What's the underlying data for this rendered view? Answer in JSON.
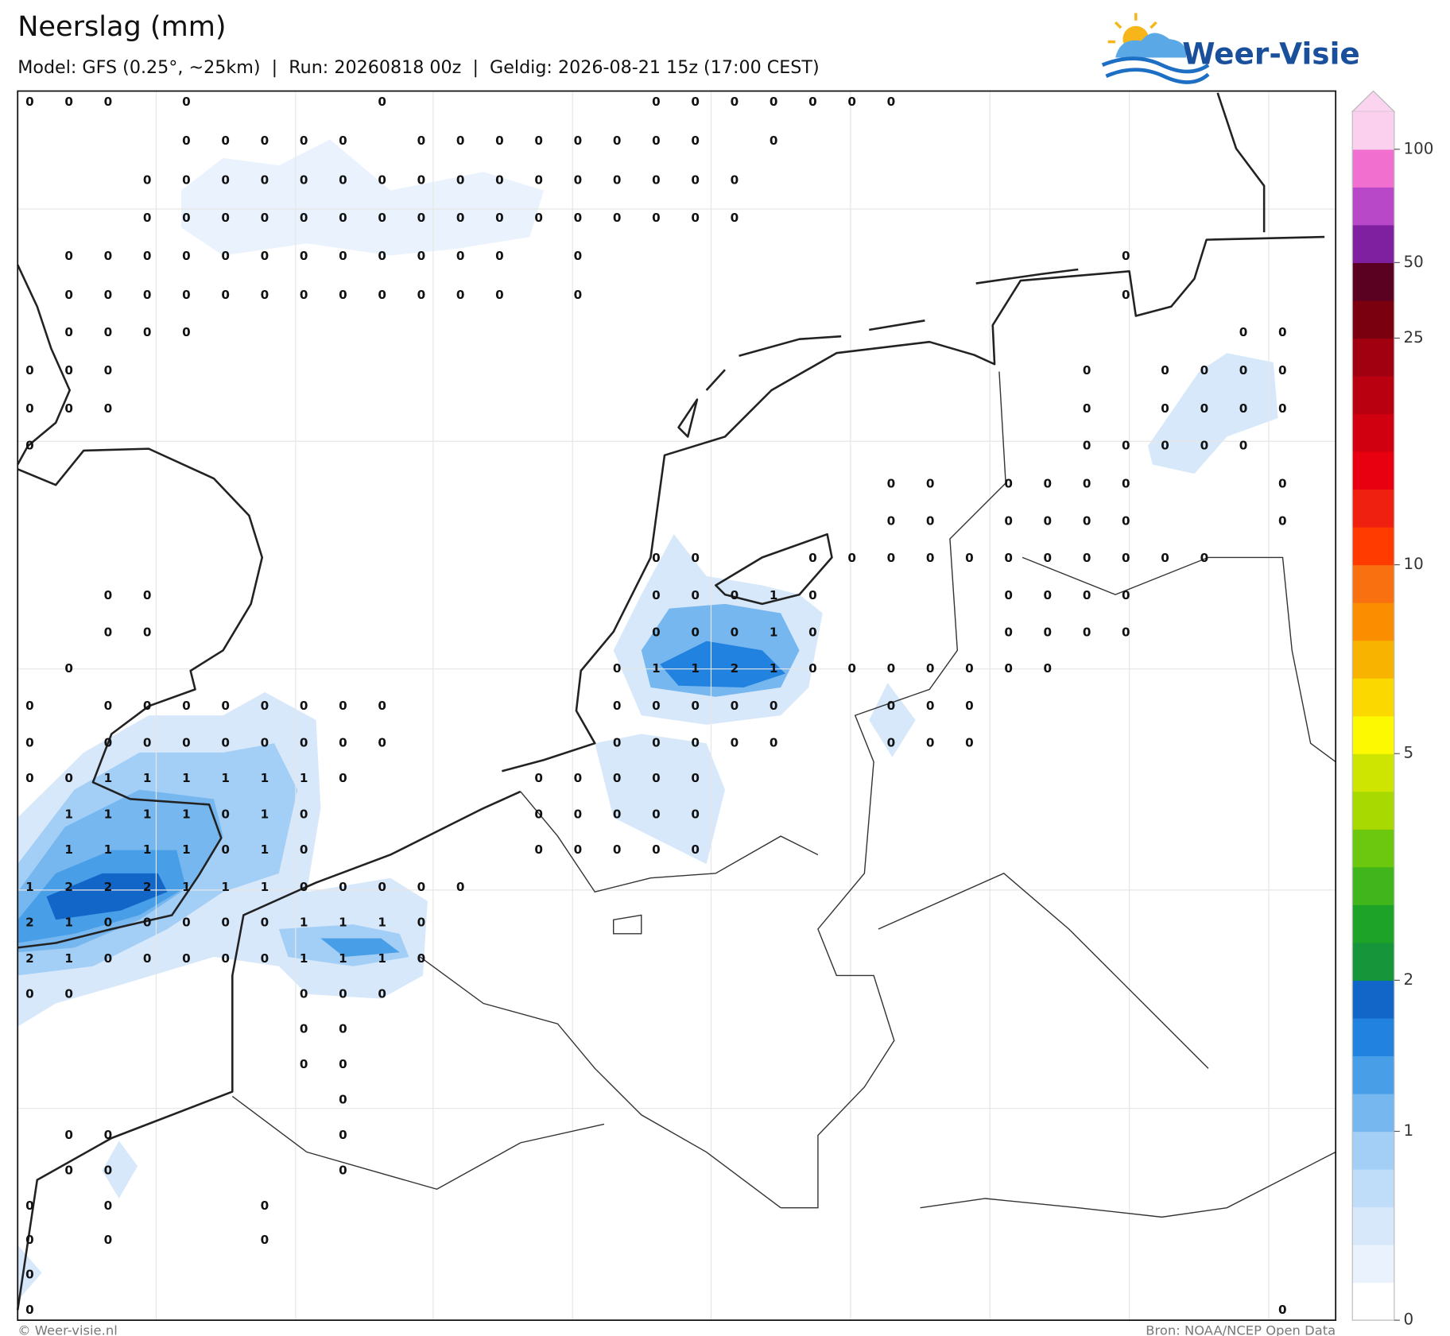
{
  "header": {
    "title": "Neerslag (mm)",
    "subtitle": "Model: GFS (0.25°, ~25km)  |  Run: 20260818 00z  |  Geldig: 2026-08-21 15z (17:00 CEST)"
  },
  "logo": {
    "text": "Weer-Visie"
  },
  "colorbar": {
    "ticks": [
      0,
      1,
      2,
      5,
      10,
      25,
      50,
      100
    ],
    "colors": [
      "#ffffff",
      "#eaf3fd",
      "#d7e8fb",
      "#bfddf9",
      "#a3cef6",
      "#76b7ef",
      "#489fe8",
      "#2182e0",
      "#1266c8",
      "#16953a",
      "#1da327",
      "#40b51c",
      "#6bc80e",
      "#a8d900",
      "#cde500",
      "#fcf900",
      "#fbd800",
      "#f7b300",
      "#fb8e00",
      "#f87010",
      "#ff3b00",
      "#f02010",
      "#e80010",
      "#d00010",
      "#b80010",
      "#a00010",
      "#7a0010",
      "#5a0020",
      "#7f20a0",
      "#b848c8",
      "#f06fcf",
      "#fbd0ee"
    ],
    "extend_color": "#fbd5ef"
  },
  "grid_values": {
    "rows": [
      [
        0,
        0,
        0,
        null,
        0,
        null,
        null,
        null,
        null,
        0,
        null,
        null,
        null,
        null,
        null,
        null,
        0,
        0,
        0,
        0,
        0,
        0,
        0,
        null,
        null,
        null,
        null,
        null,
        null,
        null,
        null,
        null,
        null
      ],
      [
        null,
        null,
        null,
        null,
        0,
        0,
        0,
        0,
        0,
        null,
        0,
        0,
        0,
        0,
        0,
        0,
        0,
        0,
        null,
        0,
        null,
        null,
        null,
        null,
        null,
        null,
        null,
        null,
        null,
        null,
        null,
        null,
        null
      ],
      [
        null,
        null,
        null,
        0,
        0,
        0,
        0,
        0,
        0,
        0,
        0,
        0,
        0,
        0,
        0,
        0,
        0,
        0,
        0,
        null,
        null,
        null,
        null,
        null,
        null,
        null,
        null,
        null,
        null,
        null,
        null,
        null,
        null
      ],
      [
        null,
        null,
        null,
        0,
        0,
        0,
        0,
        0,
        0,
        0,
        0,
        0,
        0,
        0,
        0,
        0,
        0,
        0,
        0,
        null,
        null,
        null,
        null,
        null,
        null,
        null,
        null,
        null,
        null,
        null,
        null,
        null,
        null
      ],
      [
        null,
        0,
        0,
        0,
        0,
        0,
        0,
        0,
        0,
        0,
        0,
        0,
        0,
        null,
        0,
        null,
        null,
        null,
        null,
        null,
        null,
        null,
        null,
        null,
        null,
        null,
        null,
        null,
        0,
        null,
        null,
        null,
        null
      ],
      [
        null,
        0,
        0,
        0,
        0,
        0,
        0,
        0,
        0,
        0,
        0,
        0,
        0,
        null,
        0,
        null,
        null,
        null,
        null,
        null,
        null,
        null,
        null,
        null,
        null,
        null,
        null,
        null,
        0,
        null,
        null,
        null,
        null
      ],
      [
        null,
        0,
        0,
        0,
        0,
        null,
        null,
        null,
        null,
        null,
        null,
        null,
        null,
        null,
        null,
        null,
        null,
        null,
        null,
        null,
        null,
        null,
        null,
        null,
        null,
        null,
        null,
        null,
        null,
        null,
        null,
        0,
        0
      ],
      [
        0,
        0,
        0,
        null,
        null,
        null,
        null,
        null,
        null,
        null,
        null,
        null,
        null,
        null,
        null,
        null,
        null,
        null,
        null,
        null,
        null,
        null,
        null,
        null,
        null,
        null,
        null,
        0,
        null,
        0,
        0,
        0,
        0
      ],
      [
        0,
        0,
        0,
        null,
        null,
        null,
        null,
        null,
        null,
        null,
        null,
        null,
        null,
        null,
        null,
        null,
        null,
        null,
        null,
        null,
        null,
        null,
        null,
        null,
        null,
        null,
        null,
        0,
        null,
        0,
        0,
        0,
        0
      ],
      [
        0,
        null,
        null,
        null,
        null,
        null,
        null,
        null,
        null,
        null,
        null,
        null,
        null,
        null,
        null,
        null,
        null,
        null,
        null,
        null,
        null,
        null,
        null,
        null,
        null,
        null,
        null,
        0,
        0,
        0,
        0,
        0,
        null
      ],
      [
        null,
        null,
        null,
        null,
        null,
        null,
        null,
        null,
        null,
        null,
        null,
        null,
        null,
        null,
        null,
        null,
        null,
        null,
        null,
        null,
        null,
        null,
        0,
        0,
        null,
        0,
        0,
        0,
        0,
        null,
        null,
        null,
        0
      ],
      [
        null,
        null,
        null,
        null,
        null,
        null,
        null,
        null,
        null,
        null,
        null,
        null,
        null,
        null,
        null,
        null,
        null,
        null,
        null,
        null,
        null,
        null,
        0,
        0,
        null,
        0,
        0,
        0,
        0,
        null,
        null,
        null,
        0
      ],
      [
        null,
        null,
        null,
        null,
        null,
        null,
        null,
        null,
        null,
        null,
        null,
        null,
        null,
        null,
        null,
        null,
        0,
        0,
        null,
        null,
        0,
        0,
        0,
        0,
        0,
        0,
        0,
        0,
        0,
        0,
        0,
        null,
        null
      ],
      [
        null,
        null,
        0,
        0,
        null,
        null,
        null,
        null,
        null,
        null,
        null,
        null,
        null,
        null,
        null,
        null,
        0,
        0,
        0,
        1,
        0,
        null,
        null,
        null,
        null,
        0,
        0,
        0,
        0,
        null,
        null,
        null,
        null
      ],
      [
        null,
        null,
        0,
        0,
        null,
        null,
        null,
        null,
        null,
        null,
        null,
        null,
        null,
        null,
        null,
        null,
        0,
        0,
        0,
        1,
        0,
        null,
        null,
        null,
        null,
        0,
        0,
        0,
        0,
        null,
        null,
        null,
        null
      ],
      [
        null,
        0,
        null,
        null,
        null,
        null,
        null,
        null,
        null,
        null,
        null,
        null,
        null,
        null,
        null,
        0,
        1,
        1,
        2,
        1,
        0,
        0,
        0,
        0,
        0,
        0,
        0,
        null,
        null,
        null,
        null,
        null,
        null
      ],
      [
        0,
        null,
        0,
        0,
        0,
        0,
        0,
        0,
        0,
        0,
        null,
        null,
        null,
        null,
        null,
        0,
        0,
        0,
        0,
        0,
        null,
        null,
        0,
        0,
        0,
        null,
        null,
        null,
        null,
        null,
        null,
        null,
        null
      ],
      [
        0,
        null,
        0,
        0,
        0,
        0,
        0,
        0,
        0,
        0,
        null,
        null,
        null,
        null,
        null,
        0,
        0,
        0,
        0,
        0,
        null,
        null,
        0,
        0,
        0,
        null,
        null,
        null,
        null,
        null,
        null,
        null,
        null
      ],
      [
        0,
        0,
        1,
        1,
        1,
        1,
        1,
        1,
        0,
        null,
        null,
        null,
        null,
        0,
        0,
        0,
        0,
        0,
        null,
        null,
        null,
        null,
        null,
        null,
        null,
        null,
        null,
        null,
        null,
        null,
        null,
        null,
        null
      ],
      [
        null,
        1,
        1,
        1,
        1,
        0,
        1,
        0,
        null,
        null,
        null,
        null,
        null,
        0,
        0,
        0,
        0,
        0,
        null,
        null,
        null,
        null,
        null,
        null,
        null,
        null,
        null,
        null,
        null,
        null,
        null,
        null,
        null
      ],
      [
        null,
        1,
        1,
        1,
        1,
        0,
        1,
        0,
        null,
        null,
        null,
        null,
        null,
        0,
        0,
        0,
        0,
        0,
        null,
        null,
        null,
        null,
        null,
        null,
        null,
        null,
        null,
        null,
        null,
        null,
        null,
        null,
        null
      ],
      [
        1,
        2,
        2,
        2,
        1,
        1,
        1,
        0,
        0,
        0,
        0,
        0,
        null,
        null,
        null,
        null,
        null,
        null,
        null,
        null,
        null,
        null,
        null,
        null,
        null,
        null,
        null,
        null,
        null,
        null,
        null,
        null,
        null
      ],
      [
        2,
        1,
        0,
        0,
        0,
        0,
        0,
        1,
        1,
        1,
        0,
        null,
        null,
        null,
        null,
        null,
        null,
        null,
        null,
        null,
        null,
        null,
        null,
        null,
        null,
        null,
        null,
        null,
        null,
        null,
        null,
        null,
        null
      ],
      [
        2,
        1,
        0,
        0,
        0,
        0,
        0,
        1,
        1,
        1,
        0,
        null,
        null,
        null,
        null,
        null,
        null,
        null,
        null,
        null,
        null,
        null,
        null,
        null,
        null,
        null,
        null,
        null,
        null,
        null,
        null,
        null,
        null
      ],
      [
        0,
        0,
        null,
        null,
        null,
        null,
        null,
        0,
        0,
        0,
        null,
        null,
        null,
        null,
        null,
        null,
        null,
        null,
        null,
        null,
        null,
        null,
        null,
        null,
        null,
        null,
        null,
        null,
        null,
        null,
        null,
        null,
        null
      ],
      [
        null,
        null,
        null,
        null,
        null,
        null,
        null,
        0,
        0,
        null,
        null,
        null,
        null,
        null,
        null,
        null,
        null,
        null,
        null,
        null,
        null,
        null,
        null,
        null,
        null,
        null,
        null,
        null,
        null,
        null,
        null,
        null,
        null
      ],
      [
        null,
        null,
        null,
        null,
        null,
        null,
        null,
        0,
        0,
        null,
        null,
        null,
        null,
        null,
        null,
        null,
        null,
        null,
        null,
        null,
        null,
        null,
        null,
        null,
        null,
        null,
        null,
        null,
        null,
        null,
        null,
        null,
        null
      ],
      [
        null,
        null,
        null,
        null,
        null,
        null,
        null,
        null,
        0,
        null,
        null,
        null,
        null,
        null,
        null,
        null,
        null,
        null,
        null,
        null,
        null,
        null,
        null,
        null,
        null,
        null,
        null,
        null,
        null,
        null,
        null,
        null,
        null
      ],
      [
        null,
        0,
        0,
        null,
        null,
        null,
        null,
        null,
        0,
        null,
        null,
        null,
        null,
        null,
        null,
        null,
        null,
        null,
        null,
        null,
        null,
        null,
        null,
        null,
        null,
        null,
        null,
        null,
        null,
        null,
        null,
        null,
        null
      ],
      [
        null,
        0,
        0,
        null,
        null,
        null,
        null,
        null,
        0,
        null,
        null,
        null,
        null,
        null,
        null,
        null,
        null,
        null,
        null,
        null,
        null,
        null,
        null,
        null,
        null,
        null,
        null,
        null,
        null,
        null,
        null,
        null,
        null
      ],
      [
        0,
        null,
        0,
        null,
        null,
        null,
        0,
        null,
        null,
        null,
        null,
        null,
        null,
        null,
        null,
        null,
        null,
        null,
        null,
        null,
        null,
        null,
        null,
        null,
        null,
        null,
        null,
        null,
        null,
        null,
        null,
        null,
        null
      ],
      [
        0,
        null,
        0,
        null,
        null,
        null,
        0,
        null,
        null,
        null,
        null,
        null,
        null,
        null,
        null,
        null,
        null,
        null,
        null,
        null,
        null,
        null,
        null,
        null,
        null,
        null,
        null,
        null,
        null,
        null,
        null,
        null,
        null
      ],
      [
        0,
        null,
        null,
        null,
        null,
        null,
        null,
        null,
        null,
        null,
        null,
        null,
        null,
        null,
        null,
        null,
        null,
        null,
        null,
        null,
        null,
        null,
        null,
        null,
        null,
        null,
        null,
        null,
        null,
        null,
        null,
        null,
        null
      ],
      [
        0,
        null,
        null,
        null,
        null,
        null,
        null,
        null,
        null,
        null,
        null,
        null,
        null,
        null,
        null,
        null,
        null,
        null,
        null,
        null,
        null,
        null,
        null,
        null,
        null,
        null,
        null,
        null,
        null,
        null,
        null,
        null,
        0
      ]
    ]
  },
  "footer": {
    "left": "© Weer-visie.nl",
    "right": "Bron: NOAA/NCEP Open Data"
  }
}
